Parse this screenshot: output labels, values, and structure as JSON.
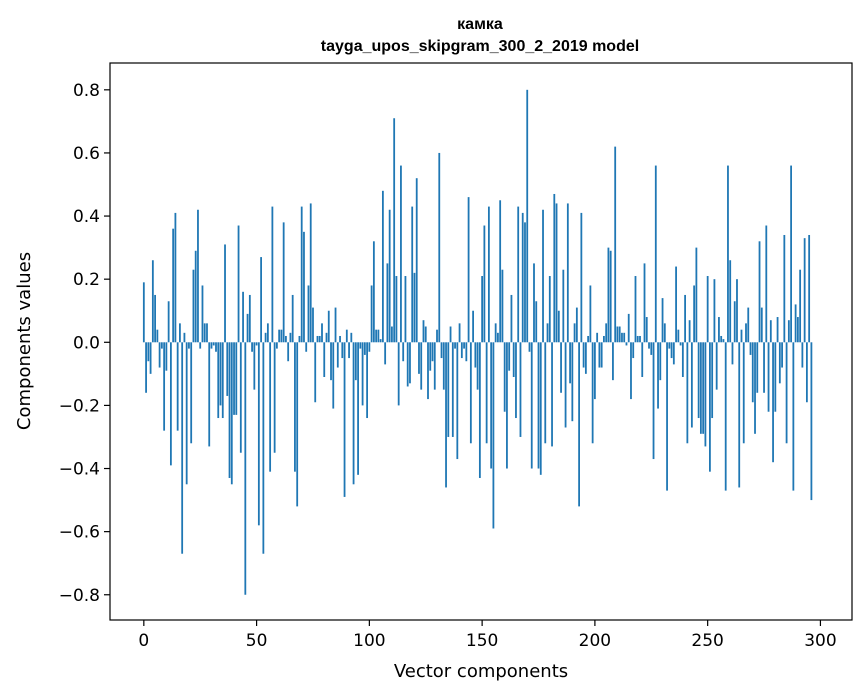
{
  "chart_data": {
    "type": "bar",
    "title": "камка",
    "subtitle": "tayga_upos_skipgram_300_2_2019 model",
    "xlabel": "Vector components",
    "ylabel": "Components values",
    "xlim": [
      -15,
      314
    ],
    "ylim": [
      -0.88,
      0.885
    ],
    "xticks": [
      0,
      50,
      100,
      150,
      200,
      250,
      300
    ],
    "yticks": [
      -0.8,
      -0.6,
      -0.4,
      -0.2,
      0.0,
      0.2,
      0.4,
      0.6,
      0.8
    ],
    "ytick_labels": [
      "−0.8",
      "−0.6",
      "−0.4",
      "−0.2",
      "0.0",
      "0.2",
      "0.4",
      "0.6",
      "0.8"
    ],
    "bar_color": "#1f77b4",
    "grid": false,
    "values": [
      0.19,
      -0.16,
      -0.06,
      -0.1,
      0.26,
      0.15,
      0.04,
      -0.08,
      -0.02,
      -0.28,
      -0.09,
      0.13,
      -0.39,
      0.36,
      0.41,
      -0.28,
      0.06,
      -0.67,
      0.03,
      -0.45,
      -0.02,
      -0.32,
      0.23,
      0.29,
      0.42,
      -0.02,
      0.18,
      0.06,
      0.06,
      -0.33,
      -0.02,
      -0.01,
      -0.03,
      -0.24,
      -0.2,
      -0.24,
      0.31,
      -0.17,
      -0.43,
      -0.45,
      -0.23,
      -0.23,
      0.37,
      -0.35,
      0.16,
      -0.8,
      0.09,
      0.15,
      -0.03,
      -0.15,
      -0.01,
      -0.58,
      0.27,
      -0.67,
      0.03,
      0.06,
      -0.41,
      0.43,
      -0.35,
      -0.02,
      0.04,
      0.04,
      0.38,
      0.02,
      -0.06,
      0.03,
      0.15,
      -0.41,
      -0.52,
      0.02,
      0.43,
      0.35,
      -0.03,
      0.18,
      0.44,
      0.11,
      -0.19,
      0.02,
      0.02,
      0.06,
      -0.11,
      0.03,
      0.1,
      -0.12,
      -0.21,
      0.11,
      -0.08,
      0.02,
      -0.05,
      -0.49,
      0.04,
      -0.05,
      0.03,
      -0.45,
      -0.12,
      -0.42,
      -0.02,
      -0.2,
      -0.04,
      -0.24,
      -0.03,
      0.18,
      0.32,
      0.04,
      0.04,
      0.01,
      0.48,
      -0.07,
      0.25,
      0.42,
      0.05,
      0.71,
      0.21,
      -0.2,
      0.56,
      -0.06,
      0.21,
      -0.14,
      -0.13,
      0.43,
      0.22,
      0.52,
      -0.1,
      -0.15,
      0.07,
      0.05,
      -0.18,
      -0.09,
      -0.06,
      -0.15,
      0.04,
      0.6,
      -0.05,
      -0.15,
      -0.46,
      -0.3,
      0.05,
      -0.3,
      -0.02,
      -0.37,
      0.06,
      -0.05,
      -0.02,
      -0.06,
      0.46,
      -0.32,
      0.1,
      -0.08,
      -0.15,
      -0.43,
      0.21,
      0.37,
      -0.32,
      0.43,
      -0.4,
      -0.59,
      0.06,
      0.03,
      0.45,
      0.23,
      -0.22,
      -0.4,
      -0.09,
      0.15,
      -0.11,
      -0.24,
      0.43,
      -0.3,
      0.41,
      0.38,
      0.8,
      -0.03,
      -0.4,
      0.25,
      0.13,
      -0.4,
      -0.42,
      0.42,
      -0.32,
      0.06,
      0.21,
      -0.33,
      0.47,
      0.44,
      0.1,
      -0.16,
      0.23,
      -0.27,
      0.44,
      -0.13,
      -0.25,
      0.06,
      0.11,
      -0.52,
      0.41,
      -0.08,
      -0.1,
      0.02,
      0.18,
      -0.32,
      -0.18,
      0.03,
      -0.08,
      -0.08,
      0.02,
      0.06,
      0.3,
      0.29,
      -0.12,
      0.62,
      0.05,
      0.05,
      0.03,
      0.03,
      -0.01,
      0.09,
      -0.18,
      -0.05,
      0.21,
      0.02,
      0.02,
      -0.11,
      0.25,
      0.08,
      -0.02,
      -0.04,
      -0.37,
      0.56,
      -0.21,
      -0.12,
      0.14,
      0.06,
      -0.47,
      -0.02,
      -0.05,
      -0.07,
      0.24,
      0.04,
      -0.01,
      -0.11,
      0.15,
      -0.32,
      0.07,
      -0.27,
      0.18,
      0.3,
      -0.24,
      -0.29,
      -0.29,
      -0.33,
      0.21,
      -0.41,
      -0.24,
      0.2,
      -0.15,
      0.08,
      0.02,
      0.01,
      -0.47,
      0.56,
      0.26,
      -0.07,
      0.13,
      0.2,
      -0.46,
      0.04,
      -0.32,
      0.06,
      0.11,
      -0.04,
      -0.19,
      -0.29,
      -0.16,
      0.32,
      0.11,
      -0.16,
      0.37,
      -0.22,
      0.07,
      -0.38,
      -0.22,
      0.08,
      -0.13,
      -0.08,
      0.34,
      -0.32,
      0.07,
      0.56,
      -0.47,
      0.12,
      0.08,
      0.23,
      -0.08,
      0.33,
      -0.19,
      0.34,
      -0.5
    ]
  }
}
